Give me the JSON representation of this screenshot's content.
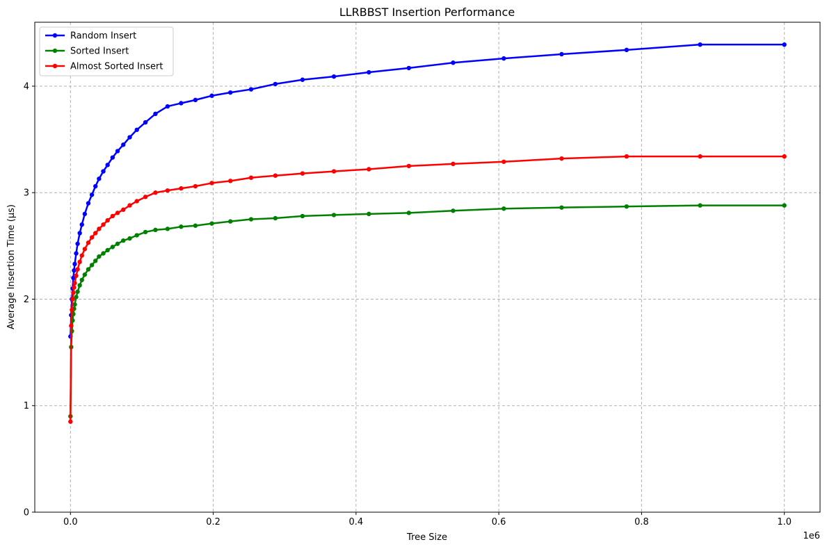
{
  "chart_data": {
    "type": "line",
    "title": "LLRBBST Insertion Performance",
    "xlabel": "Tree Size",
    "ylabel": "Average Insertion Time (μs)",
    "x_offset_label": "1e6",
    "xlim": [
      -0.05,
      1.05
    ],
    "ylim": [
      0,
      4.6
    ],
    "x_ticks": [
      0.0,
      0.2,
      0.4,
      0.6,
      0.8,
      1.0
    ],
    "x_tick_labels": [
      "0.0",
      "0.2",
      "0.4",
      "0.6",
      "0.8",
      "1.0"
    ],
    "y_ticks": [
      0,
      1,
      2,
      3,
      4
    ],
    "y_tick_labels": [
      "0",
      "1",
      "2",
      "3",
      "4"
    ],
    "grid": true,
    "legend_position": "top-left",
    "x": [
      0.0,
      0.001,
      0.002,
      0.003,
      0.004,
      0.005,
      0.006,
      0.008,
      0.01,
      0.013,
      0.016,
      0.02,
      0.025,
      0.03,
      0.035,
      0.04,
      0.046,
      0.052,
      0.059,
      0.066,
      0.074,
      0.083,
      0.093,
      0.105,
      0.119,
      0.136,
      0.155,
      0.175,
      0.198,
      0.224,
      0.253,
      0.287,
      0.325,
      0.369,
      0.418,
      0.474,
      0.536,
      0.607,
      0.688,
      0.779,
      0.882,
      1.0
    ],
    "series": [
      {
        "name": "Random Insert",
        "color": "#0000ff",
        "values": [
          1.65,
          1.85,
          2.0,
          2.1,
          2.2,
          2.27,
          2.33,
          2.43,
          2.52,
          2.62,
          2.7,
          2.8,
          2.9,
          2.98,
          3.06,
          3.13,
          3.2,
          3.26,
          3.33,
          3.39,
          3.45,
          3.52,
          3.59,
          3.66,
          3.74,
          3.81,
          3.84,
          3.87,
          3.91,
          3.94,
          3.97,
          4.02,
          4.06,
          4.09,
          4.13,
          4.17,
          4.22,
          4.26,
          4.3,
          4.34,
          4.39,
          4.39
        ]
      },
      {
        "name": "Sorted Insert",
        "color": "#008000",
        "values": [
          0.9,
          1.55,
          1.7,
          1.8,
          1.86,
          1.91,
          1.95,
          2.02,
          2.07,
          2.13,
          2.18,
          2.23,
          2.28,
          2.32,
          2.36,
          2.4,
          2.43,
          2.46,
          2.49,
          2.52,
          2.55,
          2.57,
          2.6,
          2.63,
          2.65,
          2.66,
          2.68,
          2.69,
          2.71,
          2.73,
          2.75,
          2.76,
          2.78,
          2.79,
          2.8,
          2.81,
          2.83,
          2.85,
          2.86,
          2.87,
          2.88,
          2.88
        ]
      },
      {
        "name": "Almost Sorted Insert",
        "color": "#ff0000",
        "values": [
          0.85,
          1.75,
          1.9,
          2.0,
          2.06,
          2.11,
          2.15,
          2.22,
          2.28,
          2.35,
          2.41,
          2.47,
          2.53,
          2.58,
          2.62,
          2.66,
          2.7,
          2.74,
          2.78,
          2.81,
          2.84,
          2.88,
          2.92,
          2.96,
          3.0,
          3.02,
          3.04,
          3.06,
          3.09,
          3.11,
          3.14,
          3.16,
          3.18,
          3.2,
          3.22,
          3.25,
          3.27,
          3.29,
          3.32,
          3.34,
          3.34,
          3.34
        ]
      }
    ]
  }
}
